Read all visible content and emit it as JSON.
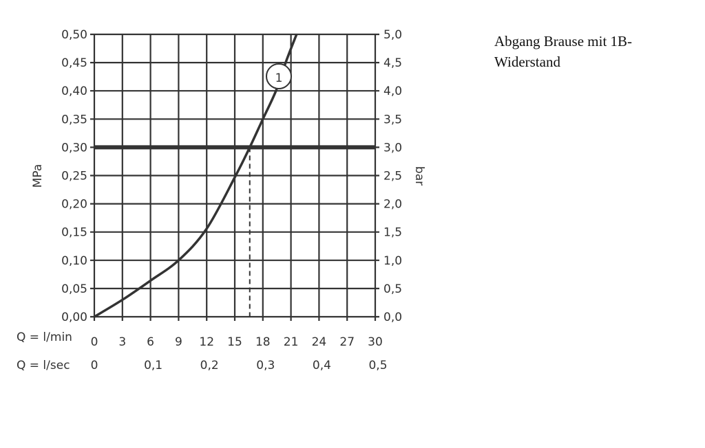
{
  "note": {
    "line1": "Abgang Brause mit 1B-",
    "line2": "Widerstand"
  },
  "chart_data": {
    "type": "line",
    "title": "",
    "ylabel_left": "MPa",
    "ylabel_right": "bar",
    "xlabel_row1": "Q = l/min",
    "xlabel_row2": "Q = l/sec",
    "xlim": [
      0,
      30
    ],
    "ylim": [
      0,
      0.5
    ],
    "grid": true,
    "x_ticks": [
      "0",
      "3",
      "6",
      "9",
      "12",
      "15",
      "18",
      "21",
      "24",
      "27",
      "30"
    ],
    "x_ticks_secondary": [
      {
        "pos": 0,
        "label": "0"
      },
      {
        "pos": 6,
        "label": "0,1"
      },
      {
        "pos": 12,
        "label": "0,2"
      },
      {
        "pos": 18,
        "label": "0,3"
      },
      {
        "pos": 24,
        "label": "0,4"
      },
      {
        "pos": 30,
        "label": "0,5"
      }
    ],
    "y_ticks_left": [
      "0,00",
      "0,05",
      "0,10",
      "0,15",
      "0,20",
      "0,25",
      "0,30",
      "0,35",
      "0,40",
      "0,45",
      "0,50"
    ],
    "y_ticks_right": [
      "0,0",
      "0,5",
      "1,0",
      "1,5",
      "2,0",
      "2,5",
      "3,0",
      "3,5",
      "4,0",
      "4,5",
      "5,0"
    ],
    "series": [
      {
        "label": "1",
        "x": [
          0,
          3,
          6,
          9,
          12,
          15.1,
          16.6,
          18,
          19.4,
          20.5,
          21.6
        ],
        "y": [
          0,
          0.03,
          0.064,
          0.1,
          0.156,
          0.25,
          0.3,
          0.35,
          0.4,
          0.453,
          0.5
        ]
      }
    ],
    "reference_line": {
      "y": 0.3
    },
    "marker_line": {
      "x": 16.6,
      "y": 0.3,
      "style": "dashed"
    },
    "colors": {
      "line": "#333333"
    }
  }
}
